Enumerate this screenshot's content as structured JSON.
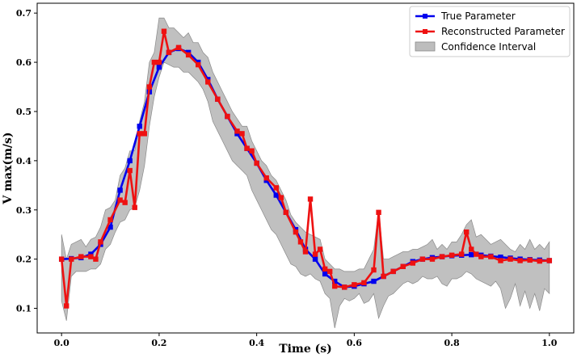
{
  "chart_data": {
    "type": "line",
    "title": "",
    "xlabel": "Time (s)",
    "ylabel": "V max(m/s)",
    "xlim": [
      -0.05,
      1.05
    ],
    "ylim": [
      0.05,
      0.72
    ],
    "xticks": [
      "0.0",
      "0.2",
      "0.4",
      "0.6",
      "0.8",
      "1.0"
    ],
    "yticks": [
      "0.1",
      "0.2",
      "0.3",
      "0.4",
      "0.5",
      "0.6",
      "0.7"
    ],
    "legend_position": "top-right",
    "grid": false,
    "series": [
      {
        "name": "True Parameter",
        "color": "#0000ee",
        "marker": "square",
        "x": [
          0.0,
          0.02,
          0.04,
          0.06,
          0.08,
          0.1,
          0.12,
          0.14,
          0.16,
          0.18,
          0.2,
          0.22,
          0.24,
          0.26,
          0.28,
          0.3,
          0.32,
          0.34,
          0.36,
          0.38,
          0.4,
          0.42,
          0.44,
          0.46,
          0.48,
          0.5,
          0.52,
          0.54,
          0.56,
          0.58,
          0.6,
          0.62,
          0.64,
          0.66,
          0.68,
          0.7,
          0.72,
          0.74,
          0.76,
          0.78,
          0.8,
          0.82,
          0.84,
          0.86,
          0.88,
          0.9,
          0.92,
          0.94,
          0.96,
          0.98,
          1.0
        ],
        "values": [
          0.2,
          0.201,
          0.203,
          0.21,
          0.23,
          0.265,
          0.34,
          0.4,
          0.47,
          0.54,
          0.59,
          0.62,
          0.628,
          0.62,
          0.6,
          0.565,
          0.525,
          0.49,
          0.455,
          0.425,
          0.395,
          0.36,
          0.33,
          0.295,
          0.26,
          0.22,
          0.2,
          0.17,
          0.155,
          0.143,
          0.145,
          0.15,
          0.155,
          0.165,
          0.175,
          0.185,
          0.195,
          0.2,
          0.203,
          0.205,
          0.207,
          0.208,
          0.209,
          0.208,
          0.206,
          0.204,
          0.202,
          0.2,
          0.199,
          0.198,
          0.197
        ]
      },
      {
        "name": "Reconstructed Parameter",
        "color": "#ee1111",
        "marker": "square",
        "x": [
          0.0,
          0.01,
          0.02,
          0.04,
          0.06,
          0.07,
          0.08,
          0.1,
          0.12,
          0.13,
          0.14,
          0.15,
          0.16,
          0.17,
          0.18,
          0.19,
          0.2,
          0.21,
          0.22,
          0.24,
          0.26,
          0.28,
          0.3,
          0.32,
          0.34,
          0.36,
          0.37,
          0.38,
          0.39,
          0.4,
          0.42,
          0.44,
          0.45,
          0.46,
          0.48,
          0.49,
          0.5,
          0.51,
          0.52,
          0.53,
          0.54,
          0.55,
          0.56,
          0.58,
          0.6,
          0.62,
          0.64,
          0.65,
          0.66,
          0.68,
          0.7,
          0.72,
          0.74,
          0.76,
          0.78,
          0.8,
          0.82,
          0.83,
          0.84,
          0.85,
          0.86,
          0.88,
          0.9,
          0.92,
          0.94,
          0.96,
          0.98,
          1.0
        ],
        "values": [
          0.2,
          0.105,
          0.2,
          0.205,
          0.205,
          0.2,
          0.235,
          0.28,
          0.32,
          0.315,
          0.38,
          0.305,
          0.455,
          0.455,
          0.55,
          0.6,
          0.6,
          0.663,
          0.62,
          0.63,
          0.615,
          0.595,
          0.56,
          0.525,
          0.49,
          0.46,
          0.455,
          0.425,
          0.42,
          0.395,
          0.365,
          0.345,
          0.325,
          0.295,
          0.255,
          0.235,
          0.215,
          0.322,
          0.21,
          0.22,
          0.18,
          0.175,
          0.145,
          0.143,
          0.148,
          0.152,
          0.178,
          0.295,
          0.165,
          0.175,
          0.185,
          0.192,
          0.2,
          0.2,
          0.205,
          0.208,
          0.21,
          0.255,
          0.22,
          0.21,
          0.205,
          0.205,
          0.197,
          0.2,
          0.197,
          0.198,
          0.196,
          0.197
        ]
      }
    ],
    "confidence_interval": {
      "name": "Confidence Interval",
      "color": "#bdbdbd",
      "x": [
        0.0,
        0.01,
        0.02,
        0.03,
        0.04,
        0.05,
        0.06,
        0.07,
        0.08,
        0.09,
        0.1,
        0.11,
        0.12,
        0.13,
        0.14,
        0.15,
        0.16,
        0.17,
        0.18,
        0.19,
        0.2,
        0.21,
        0.22,
        0.23,
        0.24,
        0.25,
        0.26,
        0.27,
        0.28,
        0.29,
        0.3,
        0.31,
        0.32,
        0.33,
        0.34,
        0.35,
        0.36,
        0.37,
        0.38,
        0.39,
        0.4,
        0.41,
        0.42,
        0.43,
        0.44,
        0.45,
        0.46,
        0.47,
        0.48,
        0.49,
        0.5,
        0.51,
        0.52,
        0.53,
        0.54,
        0.55,
        0.56,
        0.57,
        0.58,
        0.59,
        0.6,
        0.61,
        0.62,
        0.63,
        0.64,
        0.65,
        0.66,
        0.67,
        0.68,
        0.69,
        0.7,
        0.71,
        0.72,
        0.73,
        0.74,
        0.75,
        0.76,
        0.77,
        0.78,
        0.79,
        0.8,
        0.81,
        0.82,
        0.83,
        0.84,
        0.85,
        0.86,
        0.87,
        0.88,
        0.89,
        0.9,
        0.91,
        0.92,
        0.93,
        0.94,
        0.95,
        0.96,
        0.97,
        0.98,
        0.99,
        1.0
      ],
      "upper": [
        0.25,
        0.2,
        0.23,
        0.235,
        0.24,
        0.225,
        0.24,
        0.245,
        0.265,
        0.3,
        0.305,
        0.32,
        0.37,
        0.385,
        0.42,
        0.42,
        0.48,
        0.52,
        0.6,
        0.62,
        0.69,
        0.69,
        0.67,
        0.67,
        0.66,
        0.65,
        0.66,
        0.64,
        0.64,
        0.62,
        0.61,
        0.58,
        0.56,
        0.54,
        0.52,
        0.5,
        0.485,
        0.47,
        0.47,
        0.44,
        0.42,
        0.4,
        0.39,
        0.37,
        0.36,
        0.34,
        0.32,
        0.29,
        0.275,
        0.265,
        0.255,
        0.25,
        0.245,
        0.24,
        0.2,
        0.19,
        0.18,
        0.18,
        0.175,
        0.175,
        0.175,
        0.18,
        0.18,
        0.2,
        0.22,
        0.3,
        0.2,
        0.2,
        0.205,
        0.21,
        0.215,
        0.215,
        0.22,
        0.22,
        0.225,
        0.23,
        0.24,
        0.22,
        0.23,
        0.22,
        0.235,
        0.235,
        0.25,
        0.27,
        0.28,
        0.245,
        0.25,
        0.24,
        0.23,
        0.235,
        0.24,
        0.23,
        0.22,
        0.215,
        0.23,
        0.22,
        0.24,
        0.22,
        0.23,
        0.22,
        0.235
      ],
      "lower": [
        0.115,
        0.075,
        0.165,
        0.175,
        0.175,
        0.175,
        0.18,
        0.18,
        0.19,
        0.22,
        0.23,
        0.255,
        0.275,
        0.28,
        0.3,
        0.305,
        0.34,
        0.39,
        0.47,
        0.53,
        0.57,
        0.6,
        0.595,
        0.59,
        0.59,
        0.58,
        0.58,
        0.57,
        0.56,
        0.545,
        0.52,
        0.48,
        0.46,
        0.44,
        0.42,
        0.4,
        0.39,
        0.38,
        0.37,
        0.34,
        0.32,
        0.3,
        0.28,
        0.26,
        0.25,
        0.23,
        0.21,
        0.19,
        0.185,
        0.17,
        0.165,
        0.17,
        0.16,
        0.155,
        0.13,
        0.12,
        0.06,
        0.105,
        0.12,
        0.115,
        0.12,
        0.13,
        0.11,
        0.115,
        0.13,
        0.08,
        0.105,
        0.125,
        0.13,
        0.14,
        0.15,
        0.155,
        0.15,
        0.155,
        0.165,
        0.16,
        0.16,
        0.165,
        0.15,
        0.145,
        0.16,
        0.16,
        0.165,
        0.175,
        0.17,
        0.16,
        0.155,
        0.15,
        0.145,
        0.155,
        0.14,
        0.1,
        0.12,
        0.15,
        0.105,
        0.135,
        0.1,
        0.13,
        0.095,
        0.14,
        0.13
      ]
    }
  }
}
